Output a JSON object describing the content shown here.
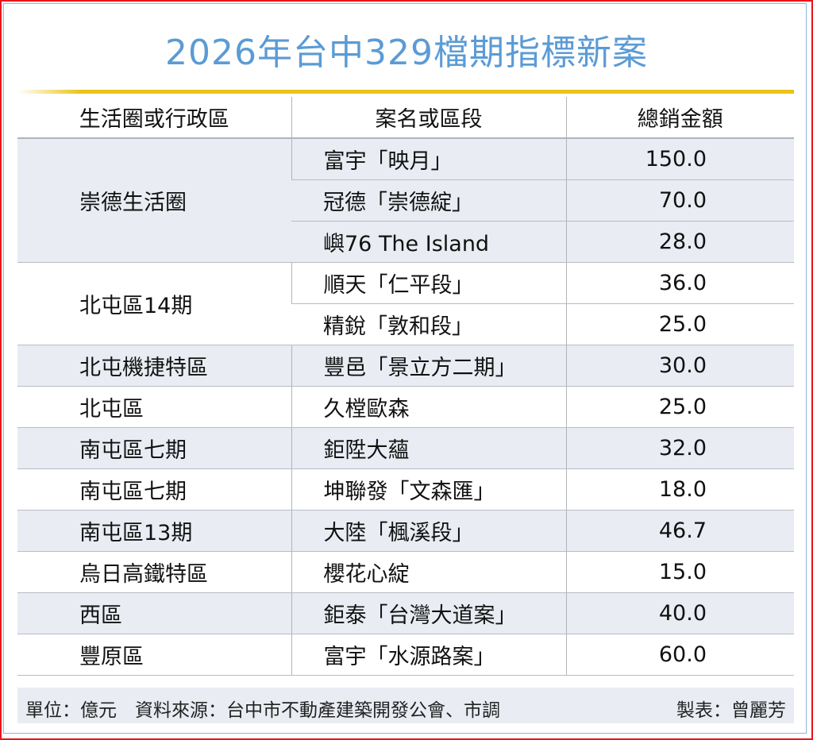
{
  "title": "2026年台中329檔期指標新案",
  "colors": {
    "title": "#5b9bd5",
    "accent_line": "#e8c31a",
    "border": "#e8141c",
    "row_shade": "#e9edf3"
  },
  "chart_data": {
    "type": "table",
    "title": "2026年台中329檔期指標新案",
    "columns": [
      "生活圈或行政區",
      "案名或區段",
      "總銷金額"
    ],
    "groups": [
      {
        "area": "崇德生活圈",
        "rows": [
          [
            "富宇「映月」",
            "150.0"
          ],
          [
            "冠德「崇德綻」",
            "70.0"
          ],
          [
            "嶼76 The Island",
            "28.0"
          ]
        ]
      },
      {
        "area": "北屯區14期",
        "rows": [
          [
            "順天「仁平段」",
            "36.0"
          ],
          [
            "精銳「敦和段」",
            "25.0"
          ]
        ]
      },
      {
        "area": "北屯機捷特區",
        "rows": [
          [
            "豐邑「景立方二期」",
            "30.0"
          ]
        ]
      },
      {
        "area": "北屯區",
        "rows": [
          [
            "久樘歐森",
            "25.0"
          ]
        ]
      },
      {
        "area": "南屯區七期",
        "rows": [
          [
            "鉅陞大蘊",
            "32.0"
          ]
        ]
      },
      {
        "area": "南屯區七期",
        "rows": [
          [
            "坤聯發「文森匯」",
            "18.0"
          ]
        ]
      },
      {
        "area": "南屯區13期",
        "rows": [
          [
            "大陸「楓溪段」",
            "46.7"
          ]
        ]
      },
      {
        "area": "烏日高鐵特區",
        "rows": [
          [
            "櫻花心綻",
            "15.0"
          ]
        ]
      },
      {
        "area": "西區",
        "rows": [
          [
            "鉅泰「台灣大道案」",
            "40.0"
          ]
        ]
      },
      {
        "area": "豐原區",
        "rows": [
          [
            "富宇「水源路案」",
            "60.0"
          ]
        ]
      }
    ]
  },
  "footer": {
    "note": "單位：億元　資料來源：台中市不動產建築開發公會、市調",
    "credit": "製表：曾麗芳"
  }
}
